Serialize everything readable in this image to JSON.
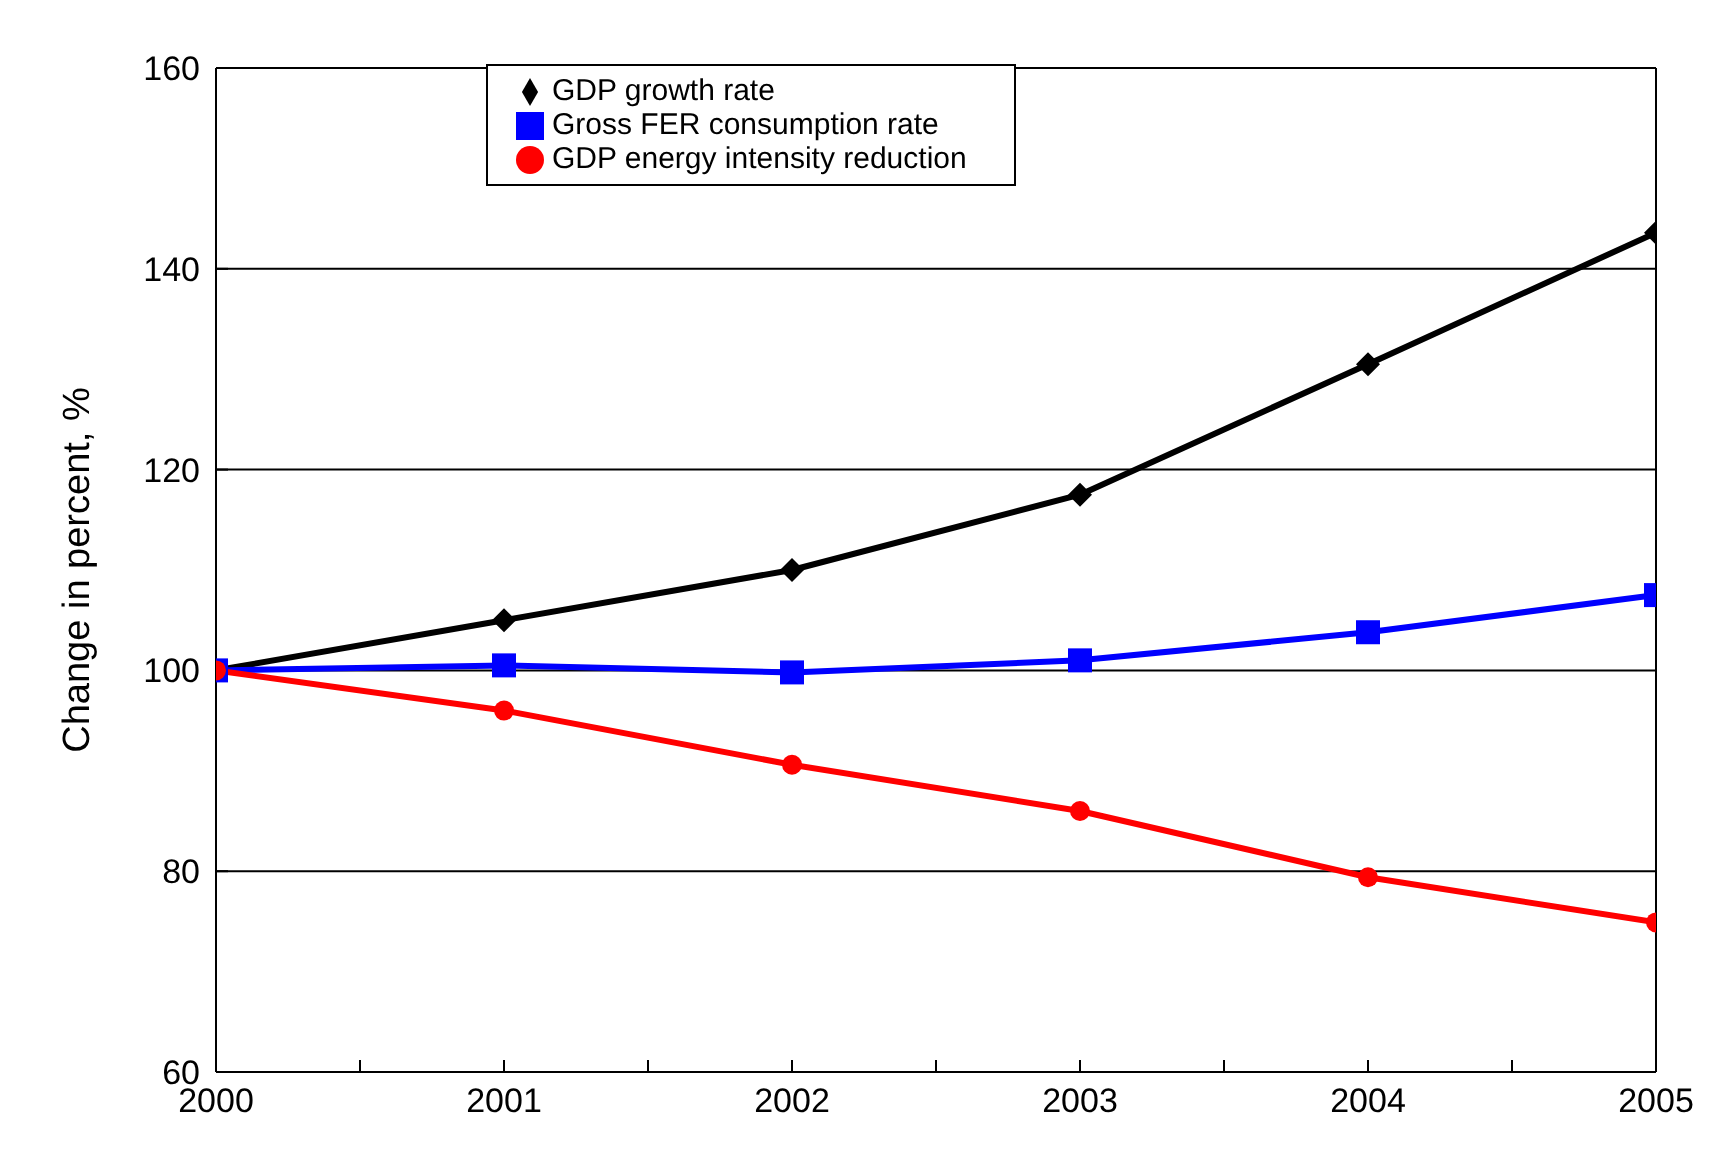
{
  "chart_data": {
    "type": "line",
    "ylabel": "Change in percent, %",
    "x": [
      2000,
      2001,
      2002,
      2003,
      2004,
      2005
    ],
    "xlim": [
      2000,
      2005
    ],
    "xticks": [
      2000,
      {
        "value": 2000.5,
        "label": null
      },
      2001,
      {
        "value": 2001.5,
        "label": null
      },
      2002,
      {
        "value": 2002.5,
        "label": null
      },
      2003,
      {
        "value": 2003.5,
        "label": null
      },
      2004,
      {
        "value": 2004.5,
        "label": null
      },
      2005
    ],
    "ylim": [
      60,
      160
    ],
    "yticks": [
      60,
      80,
      100,
      120,
      140,
      160
    ],
    "grid": "y",
    "legend": "top",
    "line_style": "solid",
    "series": [
      {
        "name": "GDP growth rate",
        "color": "#000000",
        "marker": "diamond",
        "values": [
          100,
          105,
          110,
          117.5,
          130.5,
          143.6
        ]
      },
      {
        "name": "Gross FER consumption rate",
        "color": "#0000ff",
        "marker": "square",
        "values": [
          100,
          100.5,
          99.8,
          101,
          103.8,
          107.5
        ]
      },
      {
        "name": "GDP energy intensity reduction",
        "color": "#ff0000",
        "marker": "circle",
        "values": [
          100,
          96,
          90.6,
          86,
          79.4,
          74.9
        ]
      }
    ]
  }
}
